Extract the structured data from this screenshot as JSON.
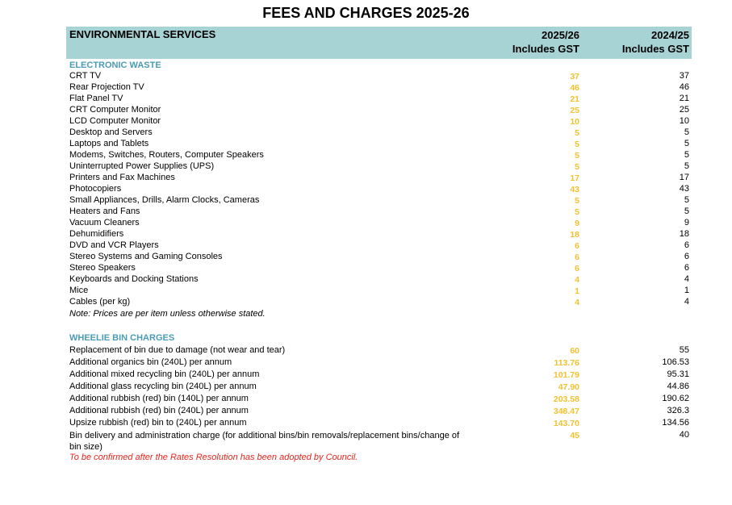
{
  "title": "FEES AND CHARGES 2025-26",
  "header": {
    "section": "ENVIRONMENTAL SERVICES",
    "col1_line1": "2025/26",
    "col1_line2": "Includes GST",
    "col2_line1": "2024/25",
    "col2_line2": "Includes GST"
  },
  "colors": {
    "header_band": "#a7d3d5",
    "section_title": "#4a9bb5",
    "new_value": "#f2c12e",
    "red_note": "#e8251e"
  },
  "ewaste": {
    "title": "ELECTRONIC WASTE",
    "rows": [
      {
        "label": "CRT TV",
        "v2025": "37",
        "v2024": "37"
      },
      {
        "label": "Rear Projection TV",
        "v2025": "46",
        "v2024": "46"
      },
      {
        "label": "Flat Panel TV",
        "v2025": "21",
        "v2024": "21"
      },
      {
        "label": "CRT Computer Monitor",
        "v2025": "25",
        "v2024": "25"
      },
      {
        "label": "LCD Computer Monitor",
        "v2025": "10",
        "v2024": "10"
      },
      {
        "label": "Desktop and Servers",
        "v2025": "5",
        "v2024": "5"
      },
      {
        "label": "Laptops and Tablets",
        "v2025": "5",
        "v2024": "5"
      },
      {
        "label": "Modems, Switches, Routers, Computer Speakers",
        "v2025": "5",
        "v2024": "5"
      },
      {
        "label": "Uninterrupted Power Supplies (UPS)",
        "v2025": "5",
        "v2024": "5"
      },
      {
        "label": "Printers and Fax Machines",
        "v2025": "17",
        "v2024": "17"
      },
      {
        "label": "Photocopiers",
        "v2025": "43",
        "v2024": "43"
      },
      {
        "label": "Small Appliances, Drills, Alarm Clocks, Cameras",
        "v2025": "5",
        "v2024": "5"
      },
      {
        "label": "Heaters and Fans",
        "v2025": "5",
        "v2024": "5"
      },
      {
        "label": "Vacuum Cleaners",
        "v2025": "9",
        "v2024": "9"
      },
      {
        "label": "Dehumidifiers",
        "v2025": "18",
        "v2024": "18"
      },
      {
        "label": "DVD and VCR Players",
        "v2025": "6",
        "v2024": "6"
      },
      {
        "label": "Stereo Systems and Gaming Consoles",
        "v2025": "6",
        "v2024": "6"
      },
      {
        "label": "Stereo Speakers",
        "v2025": "6",
        "v2024": "6"
      },
      {
        "label": "Keyboards and Docking Stations",
        "v2025": "4",
        "v2024": "4"
      },
      {
        "label": "Mice",
        "v2025": "1",
        "v2024": "1"
      },
      {
        "label": "Cables (per kg)",
        "v2025": "4",
        "v2024": "4"
      }
    ],
    "note": "Note: Prices are per item unless otherwise stated."
  },
  "wheelie": {
    "title": "WHEELIE BIN CHARGES",
    "rows": [
      {
        "label": "Replacement of bin due to damage (not wear and tear)",
        "v2025": "60",
        "v2024": "55"
      },
      {
        "label": "Additional organics bin (240L) per annum",
        "v2025": "113.76",
        "v2024": "106.53"
      },
      {
        "label": "Additional mixed recycling bin (240L) per annum",
        "v2025": "101.79",
        "v2024": "95.31"
      },
      {
        "label": "Additional glass recycling bin (240L) per annum",
        "v2025": "47.90",
        "v2024": "44.86"
      },
      {
        "label": "Additional rubbish (red) bin (140L) per annum",
        "v2025": "203.58",
        "v2024": "190.62"
      },
      {
        "label": "Additional rubbish (red) bin (240L) per annum",
        "v2025": "348.47",
        "v2024": "326.3"
      },
      {
        "label": "Upsize rubbish (red) bin to (240L) per annum",
        "v2025": "143.70",
        "v2024": "134.56"
      },
      {
        "label": "Bin delivery and administration charge (for additional bins/bin removals/replacement bins/change of bin size)",
        "v2025": "45",
        "v2024": "40"
      }
    ],
    "note": "To be confirmed after the Rates Resolution has been adopted by Council."
  }
}
